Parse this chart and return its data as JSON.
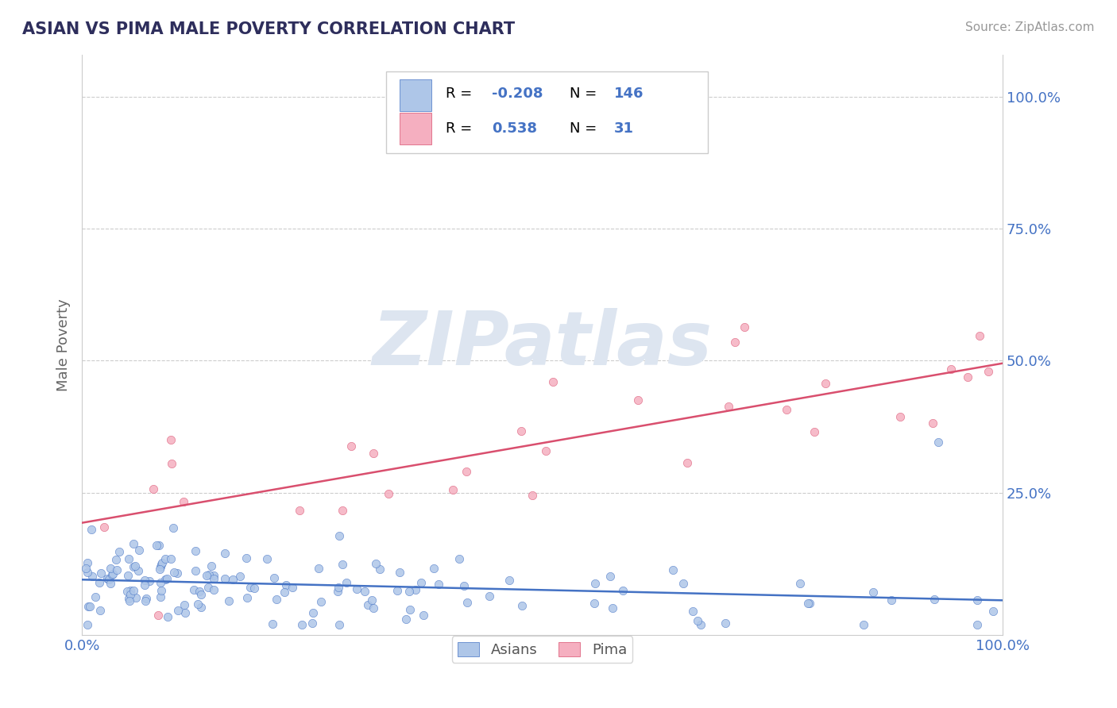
{
  "title": "ASIAN VS PIMA MALE POVERTY CORRELATION CHART",
  "source": "Source: ZipAtlas.com",
  "ylabel": "Male Poverty",
  "xlim": [
    0,
    1
  ],
  "ylim": [
    -0.02,
    1.08
  ],
  "yticks": [
    0.0,
    0.25,
    0.5,
    0.75,
    1.0
  ],
  "ytick_labels": [
    "",
    "25.0%",
    "50.0%",
    "75.0%",
    "100.0%"
  ],
  "asian_R": -0.208,
  "asian_N": 146,
  "pima_R": 0.538,
  "pima_N": 31,
  "asian_color": "#aec6e8",
  "pima_color": "#f5afc0",
  "asian_line_color": "#4472c4",
  "pima_line_color": "#d94f6e",
  "title_color": "#2e2e5c",
  "source_color": "#999999",
  "grid_color": "#cccccc",
  "watermark_color": "#dde5f0",
  "background_color": "#ffffff",
  "legend_text_color_R": "#000000",
  "legend_text_color_N": "#4472c4"
}
